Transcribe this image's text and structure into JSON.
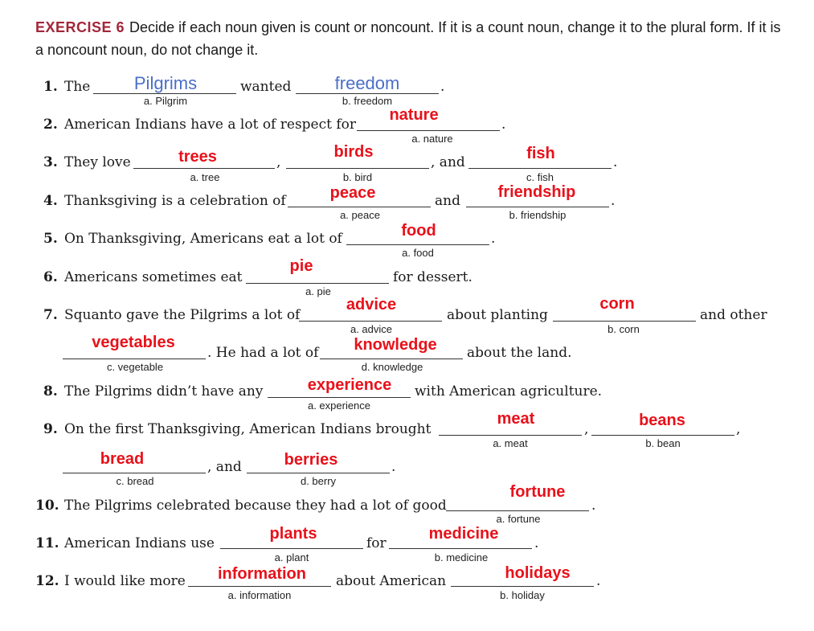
{
  "header": {
    "label": "EXERCISE 6",
    "instructions": "Decide if each noun given is count or noncount. If it is a count noun, change it to the plural form. If it is a noncount noun, do not change it."
  },
  "items": {
    "i1": {
      "num": "1.",
      "t1": "The",
      "t2": "wanted",
      "t3": ".",
      "a": "Pilgrims",
      "ha": "a. Pilgrim",
      "b": "freedom",
      "hb": "b. freedom"
    },
    "i2": {
      "num": "2.",
      "t1": "American Indians have a lot of respect for",
      "t2": ".",
      "a": "nature",
      "ha": "a. nature"
    },
    "i3": {
      "num": "3.",
      "t1": "They love",
      "t2": ",",
      "t3": ", and",
      "t4": ".",
      "a": "trees",
      "ha": "a. tree",
      "b": "birds",
      "hb": "b. bird",
      "c": "fish",
      "hc": "c. fish"
    },
    "i4": {
      "num": "4.",
      "t1": "Thanksgiving is a celebration of",
      "t2": "and",
      "t3": ".",
      "a": "peace",
      "ha": "a. peace",
      "b": "friendship",
      "hb": "b. friendship"
    },
    "i5": {
      "num": "5.",
      "t1": "On Thanksgiving, Americans eat a lot of",
      "t2": ".",
      "a": "food",
      "ha": "a. food"
    },
    "i6": {
      "num": "6.",
      "t1": "Americans sometimes eat",
      "t2": "for dessert.",
      "a": "pie",
      "ha": "a. pie"
    },
    "i7": {
      "num": "7.",
      "t1": "Squanto gave the Pilgrims a lot of",
      "t2": "about planting",
      "t3": "and other",
      "t4": ". He had a lot of",
      "t5": "about the land.",
      "a": "advice",
      "ha": "a. advice",
      "b": "corn",
      "hb": "b. corn",
      "c": "vegetables",
      "hc": "c. vegetable",
      "d": "knowledge",
      "hd": "d. knowledge"
    },
    "i8": {
      "num": "8.",
      "t1": "The Pilgrims didn’t have any",
      "t2": "with American agriculture.",
      "a": "experience",
      "ha": "a. experience"
    },
    "i9": {
      "num": "9.",
      "t1": "On the first Thanksgiving, American Indians brought",
      "t2": ",",
      "t3": ",",
      "t4": ", and",
      "t5": ".",
      "a": "meat",
      "ha": "a. meat",
      "b": "beans",
      "hb": "b. bean",
      "c": "bread",
      "hc": "c. bread",
      "d": "berries",
      "hd": "d. berry"
    },
    "i10": {
      "num": "10.",
      "t1": "The Pilgrims celebrated because they had a lot of good",
      "t2": ".",
      "a": "fortune",
      "ha": "a. fortune"
    },
    "i11": {
      "num": "11.",
      "t1": "American Indians use",
      "t2": "for",
      "t3": ".",
      "a": "plants",
      "ha": "a. plant",
      "b": "medicine",
      "hb": "b. medicine"
    },
    "i12": {
      "num": "12.",
      "t1": "I would like more",
      "t2": "about American",
      "t3": ".",
      "a": "information",
      "ha": "a. information",
      "b": "holidays",
      "hb": "b. holiday"
    }
  },
  "colors": {
    "header_label": "#a3263a",
    "answer_red": "#e8111a",
    "answer_blue": "#4a6fc8"
  }
}
